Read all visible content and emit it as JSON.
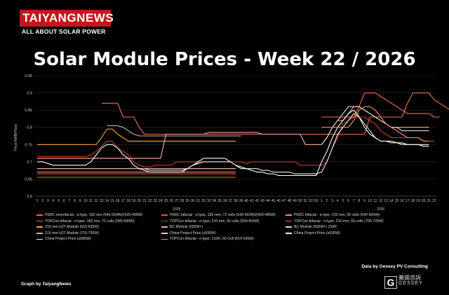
{
  "logo": {
    "brand": "TAIYANGNEWS",
    "tagline": "ALL ABOUT SOLAR POWER"
  },
  "title": "Solar Module Prices - Week 22 / 2026",
  "credits": {
    "data": "Data by Gessey PV Consulting",
    "graph": "Graph by TaiyangNews"
  },
  "seal": {
    "chinese": "蓋錫咨詢",
    "letter": "G",
    "name": "GESSEY"
  },
  "chart_data": {
    "type": "line",
    "ylabel": "Price RMB/Piece",
    "ylim": [
      0.6,
      0.95
    ],
    "yticks": [
      0.6,
      0.65,
      0.7,
      0.75,
      0.8,
      0.85,
      0.9,
      0.95
    ],
    "x_week_labels": [
      "1",
      "2",
      "3",
      "4",
      "5",
      "6",
      "7",
      "8",
      "9",
      "10",
      "11",
      "12",
      "13",
      "14",
      "15",
      "16",
      "17",
      "18",
      "19",
      "20",
      "21",
      "22",
      "23",
      "24",
      "25",
      "26",
      "27",
      "28",
      "29",
      "30",
      "31",
      "32",
      "33",
      "34",
      "35",
      "36",
      "37",
      "38",
      "39",
      "40",
      "41",
      "42",
      "43",
      "44",
      "45",
      "46",
      "47",
      "48",
      "49",
      "50",
      "51",
      "52",
      "53",
      "1",
      "2",
      "3",
      "4",
      "5",
      "6",
      "7",
      "8",
      "9",
      "10",
      "11",
      "12",
      "13",
      "14",
      "15",
      "16",
      "17",
      "18",
      "19",
      "20",
      "21",
      "22"
    ],
    "year_labels": [
      {
        "text": "2025",
        "at_index": 26
      },
      {
        "text": "2026",
        "at_index": 64
      }
    ],
    "grid": true,
    "legend_position": "bottom",
    "series": [
      {
        "name": "PERC monofacial - p-type, 182 mm (540-550W)/(420-495W)",
        "color": "#ff5a4e",
        "segments": [
          {
            "start": 0,
            "values": [
              0.655,
              0.655,
              0.655,
              0.655,
              0.655,
              0.655,
              0.655,
              0.655,
              0.655,
              0.655,
              0.655,
              0.655,
              0.655,
              0.655,
              0.655,
              0.655,
              0.655,
              0.655,
              0.655,
              0.655,
              0.655,
              0.655,
              0.655,
              0.655,
              0.655,
              0.655,
              0.655,
              0.655,
              0.655,
              0.655,
              0.655,
              0.655,
              0.655,
              0.655,
              0.655,
              0.655,
              0.655,
              0.655
            ]
          }
        ]
      },
      {
        "name": "PERC bifacial - p-type, 182 mm, 72 cells (540-550W)/(420-495W)",
        "color": "#e0543e",
        "segments": [
          {
            "start": 0,
            "values": [
              0.665,
              0.665,
              0.665,
              0.665,
              0.665,
              0.665,
              0.665,
              0.665,
              0.665,
              0.665,
              0.665,
              0.665,
              0.665,
              0.665,
              0.665,
              0.665,
              0.665,
              0.665,
              0.665,
              0.665,
              0.665,
              0.665,
              0.665,
              0.665,
              0.665,
              0.665,
              0.665,
              0.665,
              0.665,
              0.665,
              0.665,
              0.665,
              0.665,
              0.665,
              0.665,
              0.665,
              0.665,
              0.665
            ]
          }
        ]
      },
      {
        "name": "PERC bifacial - p-type, 210 mm, 55 cells (540-550W)",
        "color": "#ff8a70",
        "segments": [
          {
            "start": 0,
            "values": [
              0.67,
              0.67,
              0.67,
              0.67,
              0.67,
              0.67,
              0.67,
              0.67,
              0.67,
              0.67,
              0.67,
              0.67,
              0.67,
              0.67,
              0.67,
              0.67,
              0.67,
              0.67,
              0.67,
              0.67,
              0.67,
              0.67,
              0.67,
              0.67,
              0.67,
              0.67,
              0.67,
              0.67,
              0.67,
              0.67,
              0.67,
              0.67,
              0.67,
              0.67,
              0.67,
              0.67,
              0.67,
              0.67
            ]
          }
        ]
      },
      {
        "name": "TOPCon bifacial - n-type, 182 mm, 72 cells (580-590W)",
        "color": "#e8735c",
        "segments": [
          {
            "start": 12,
            "values": [
              0.87,
              0.87,
              0.87,
              0.87,
              0.83,
              0.83,
              0.83,
              0.8,
              0.78,
              0.78,
              0.78,
              0.78,
              0.78,
              0.78,
              0.78,
              0.78,
              0.78,
              0.78,
              0.78,
              0.78,
              0.78,
              0.78,
              0.78,
              0.78,
              0.78,
              0.78,
              0.78,
              0.78,
              0.78,
              0.78,
              0.78,
              0.78,
              0.78,
              0.78,
              0.78,
              0.78,
              0.78,
              0.78,
              0.78,
              0.78,
              0.78,
              0.78,
              0.78,
              0.78,
              0.78,
              0.78,
              0.78,
              0.78,
              0.78,
              0.78,
              0.83,
              0.83,
              0.83,
              0.83,
              0.83,
              0.83,
              0.83,
              0.87,
              0.9,
              0.9,
              0.9,
              0.9,
              0.88,
              0.87,
              0.86,
              0.85,
              0.85,
              0.85,
              0.85,
              0.84,
              0.84,
              0.84,
              0.84
            ]
          }
        ]
      },
      {
        "name": "TOPCon bifacial - n-type, 210 mm, 60 cells (630-655W)",
        "color": "#cc3b2c",
        "segments": [
          {
            "start": 0,
            "values": [
              0.715,
              0.715,
              0.715,
              0.715,
              0.715,
              0.715,
              0.715,
              0.715,
              0.715,
              0.715,
              0.72,
              0.73,
              0.745,
              0.76,
              0.76,
              0.74,
              0.73,
              0.72,
              0.7,
              0.69,
              0.685,
              0.685,
              0.69,
              0.69,
              0.69,
              0.69,
              0.7,
              0.7,
              0.7,
              0.7,
              0.7,
              0.7,
              0.7,
              0.7,
              0.7,
              0.7,
              0.7,
              0.7,
              0.7,
              0.695,
              0.7,
              0.7,
              0.7,
              0.7,
              0.7,
              0.7,
              0.7,
              0.7,
              0.7,
              0.69,
              0.69,
              0.69,
              0.69,
              0.69,
              0.7,
              0.74,
              0.77,
              0.81,
              0.82,
              0.83,
              0.83,
              0.83,
              0.82,
              0.81,
              0.79,
              0.78,
              0.77,
              0.77,
              0.77,
              0.77,
              0.77,
              0.77,
              0.76,
              0.76,
              0.76
            ]
          }
        ]
      },
      {
        "name": "TOPCon bifacial - n-type, 210 mm, 66 cells (700-725W)",
        "color": "#ff6a55",
        "segments": [
          {
            "start": 53,
            "values": [
              0.83,
              0.83,
              0.83,
              0.83,
              0.83,
              0.83,
              0.83,
              0.86,
              0.9,
              0.9,
              0.9,
              0.89,
              0.88,
              0.87,
              0.86,
              0.85,
              0.84,
              0.84,
              0.84,
              0.84,
              0.84,
              0.83,
              0.83
            ]
          }
        ]
      },
      {
        "name": "210 mm HJT Module (615-635W)",
        "color": "#f4a53a",
        "segments": [
          {
            "start": 0,
            "values": [
              0.75,
              0.75,
              0.75,
              0.75,
              0.75,
              0.75,
              0.75,
              0.75,
              0.75,
              0.75,
              0.75,
              0.75,
              0.77,
              0.795,
              0.795,
              0.78,
              0.77,
              0.76,
              0.76,
              0.76,
              0.76,
              0.76,
              0.76,
              0.76,
              0.76,
              0.76,
              0.76,
              0.76,
              0.76,
              0.76,
              0.76,
              0.76,
              0.76,
              0.76,
              0.76,
              0.76,
              0.76,
              0.76
            ]
          }
        ]
      },
      {
        "name": "BC Module (655W+)",
        "color": "#ffb0a0",
        "segments": [
          {
            "start": 0,
            "values": [
              0.71,
              0.71,
              0.71,
              0.71,
              0.71,
              0.71,
              0.71,
              0.71,
              0.71,
              0.71,
              0.71,
              0.71,
              0.71,
              0.71,
              0.71,
              0.71,
              0.71,
              0.71,
              0.71,
              0.71,
              0.71,
              0.71,
              0.71,
              0.71,
              0.78,
              0.78,
              0.78,
              0.78,
              0.78,
              0.78,
              0.78,
              0.78,
              0.785,
              0.785,
              0.785,
              0.785,
              0.785,
              0.785,
              0.785,
              0.785,
              0.785,
              0.785,
              0.78,
              0.78,
              0.78,
              0.78,
              0.78,
              0.78,
              0.78,
              0.78,
              0.75,
              0.75,
              0.75,
              0.75,
              0.77,
              0.8,
              0.82,
              0.82,
              0.84,
              0.86,
              0.86,
              0.85,
              0.84,
              0.83,
              0.82,
              0.81,
              0.8,
              0.8,
              0.8,
              0.8,
              0.8,
              0.8,
              0.8,
              0.8
            ]
          }
        ]
      },
      {
        "name": "BC Module (655W+) 210R",
        "color": "#dddddd",
        "segments": [
          {
            "start": 53,
            "values": [
              0.75,
              0.77,
              0.8,
              0.82,
              0.84,
              0.86,
              0.86,
              0.86,
              0.85,
              0.84,
              0.83,
              0.82,
              0.81,
              0.8,
              0.8,
              0.79,
              0.79,
              0.79,
              0.79,
              0.79,
              0.79
            ]
          }
        ]
      },
      {
        "name": "210 mm HJT Module (715-730W)",
        "color": "#bbbbbb",
        "segments": [
          {
            "start": 13,
            "values": [
              0.805,
              0.805,
              0.805,
              0.8,
              0.79,
              0.78,
              0.775,
              0.775,
              0.775,
              0.775,
              0.775,
              0.775,
              0.775,
              0.775,
              0.775,
              0.775,
              0.775,
              0.775,
              0.775,
              0.775,
              0.775,
              0.775,
              0.775,
              0.775,
              0.775,
              0.775
            ]
          }
        ]
      },
      {
        "name": "China Project Price (≥595W)",
        "color": "#ffc8b8",
        "segments": [
          {
            "start": 0,
            "values": [
              0.68,
              0.68,
              0.68,
              0.68,
              0.68,
              0.68,
              0.68,
              0.68,
              0.68,
              0.68,
              0.68,
              0.68,
              0.68,
              0.68,
              0.68,
              0.68,
              0.68,
              0.68,
              0.68,
              0.68,
              0.68,
              0.68,
              0.68,
              0.68,
              0.68,
              0.68,
              0.68,
              0.68,
              0.68,
              0.68,
              0.68,
              0.68,
              0.68,
              0.68,
              0.68,
              0.68,
              0.68,
              0.68
            ]
          }
        ]
      },
      {
        "name": "China Project Price (≥635W)",
        "color": "#ffffff",
        "segments": [
          {
            "start": 0,
            "values": [
              0.7,
              0.7,
              0.695,
              0.69,
              0.69,
              0.69,
              0.69,
              0.69,
              0.69,
              0.69,
              0.7,
              0.72,
              0.74,
              0.75,
              0.75,
              0.74,
              0.72,
              0.71,
              0.69,
              0.68,
              0.675,
              0.67,
              0.67,
              0.67,
              0.67,
              0.67,
              0.67,
              0.67,
              0.68,
              0.69,
              0.7,
              0.71,
              0.71,
              0.71,
              0.71,
              0.71,
              0.7,
              0.69,
              0.68,
              0.68,
              0.675,
              0.67,
              0.67,
              0.665,
              0.665,
              0.66,
              0.66,
              0.66,
              0.66,
              0.66,
              0.66,
              0.66,
              0.66,
              0.7,
              0.73,
              0.77,
              0.8,
              0.82,
              0.84,
              0.85,
              0.83,
              0.8,
              0.78,
              0.77,
              0.76,
              0.76,
              0.76,
              0.755,
              0.755,
              0.75,
              0.75,
              0.75,
              0.745,
              0.745
            ]
          }
        ]
      },
      {
        "name": "China Project Price (≥585W)",
        "color": "#f0f0f0",
        "segments": [
          {
            "start": 20,
            "values": [
              0.68,
              0.675,
              0.675,
              0.675,
              0.675,
              0.675,
              0.675,
              0.675,
              0.68,
              0.69,
              0.695,
              0.7,
              0.7,
              0.7,
              0.7,
              0.7,
              0.7,
              0.69,
              0.685,
              0.68,
              0.68,
              0.68,
              0.675,
              0.675,
              0.67,
              0.67,
              0.67,
              0.67,
              0.665,
              0.665,
              0.665,
              0.665,
              0.665,
              0.67,
              0.7,
              0.74,
              0.78,
              0.8,
              0.82,
              0.84,
              0.83,
              0.81,
              0.79,
              0.77,
              0.76,
              0.76,
              0.755,
              0.755,
              0.75,
              0.75,
              0.75,
              0.75,
              0.75,
              0.75
            ]
          }
        ]
      },
      {
        "name": "TOPCon bifacial - n-type, 210R, 60 Cell (610-635W)",
        "color": "#ff8f5c",
        "segments": [
          {
            "start": 53,
            "values": [
              0.8,
              0.8,
              0.8,
              0.8,
              0.8,
              0.8,
              0.82,
              0.85,
              0.86,
              0.86,
              0.85,
              0.83,
              0.81,
              0.8,
              0.79,
              0.78,
              0.77,
              0.77,
              0.77,
              0.76,
              0.76
            ]
          }
        ]
      }
    ]
  }
}
